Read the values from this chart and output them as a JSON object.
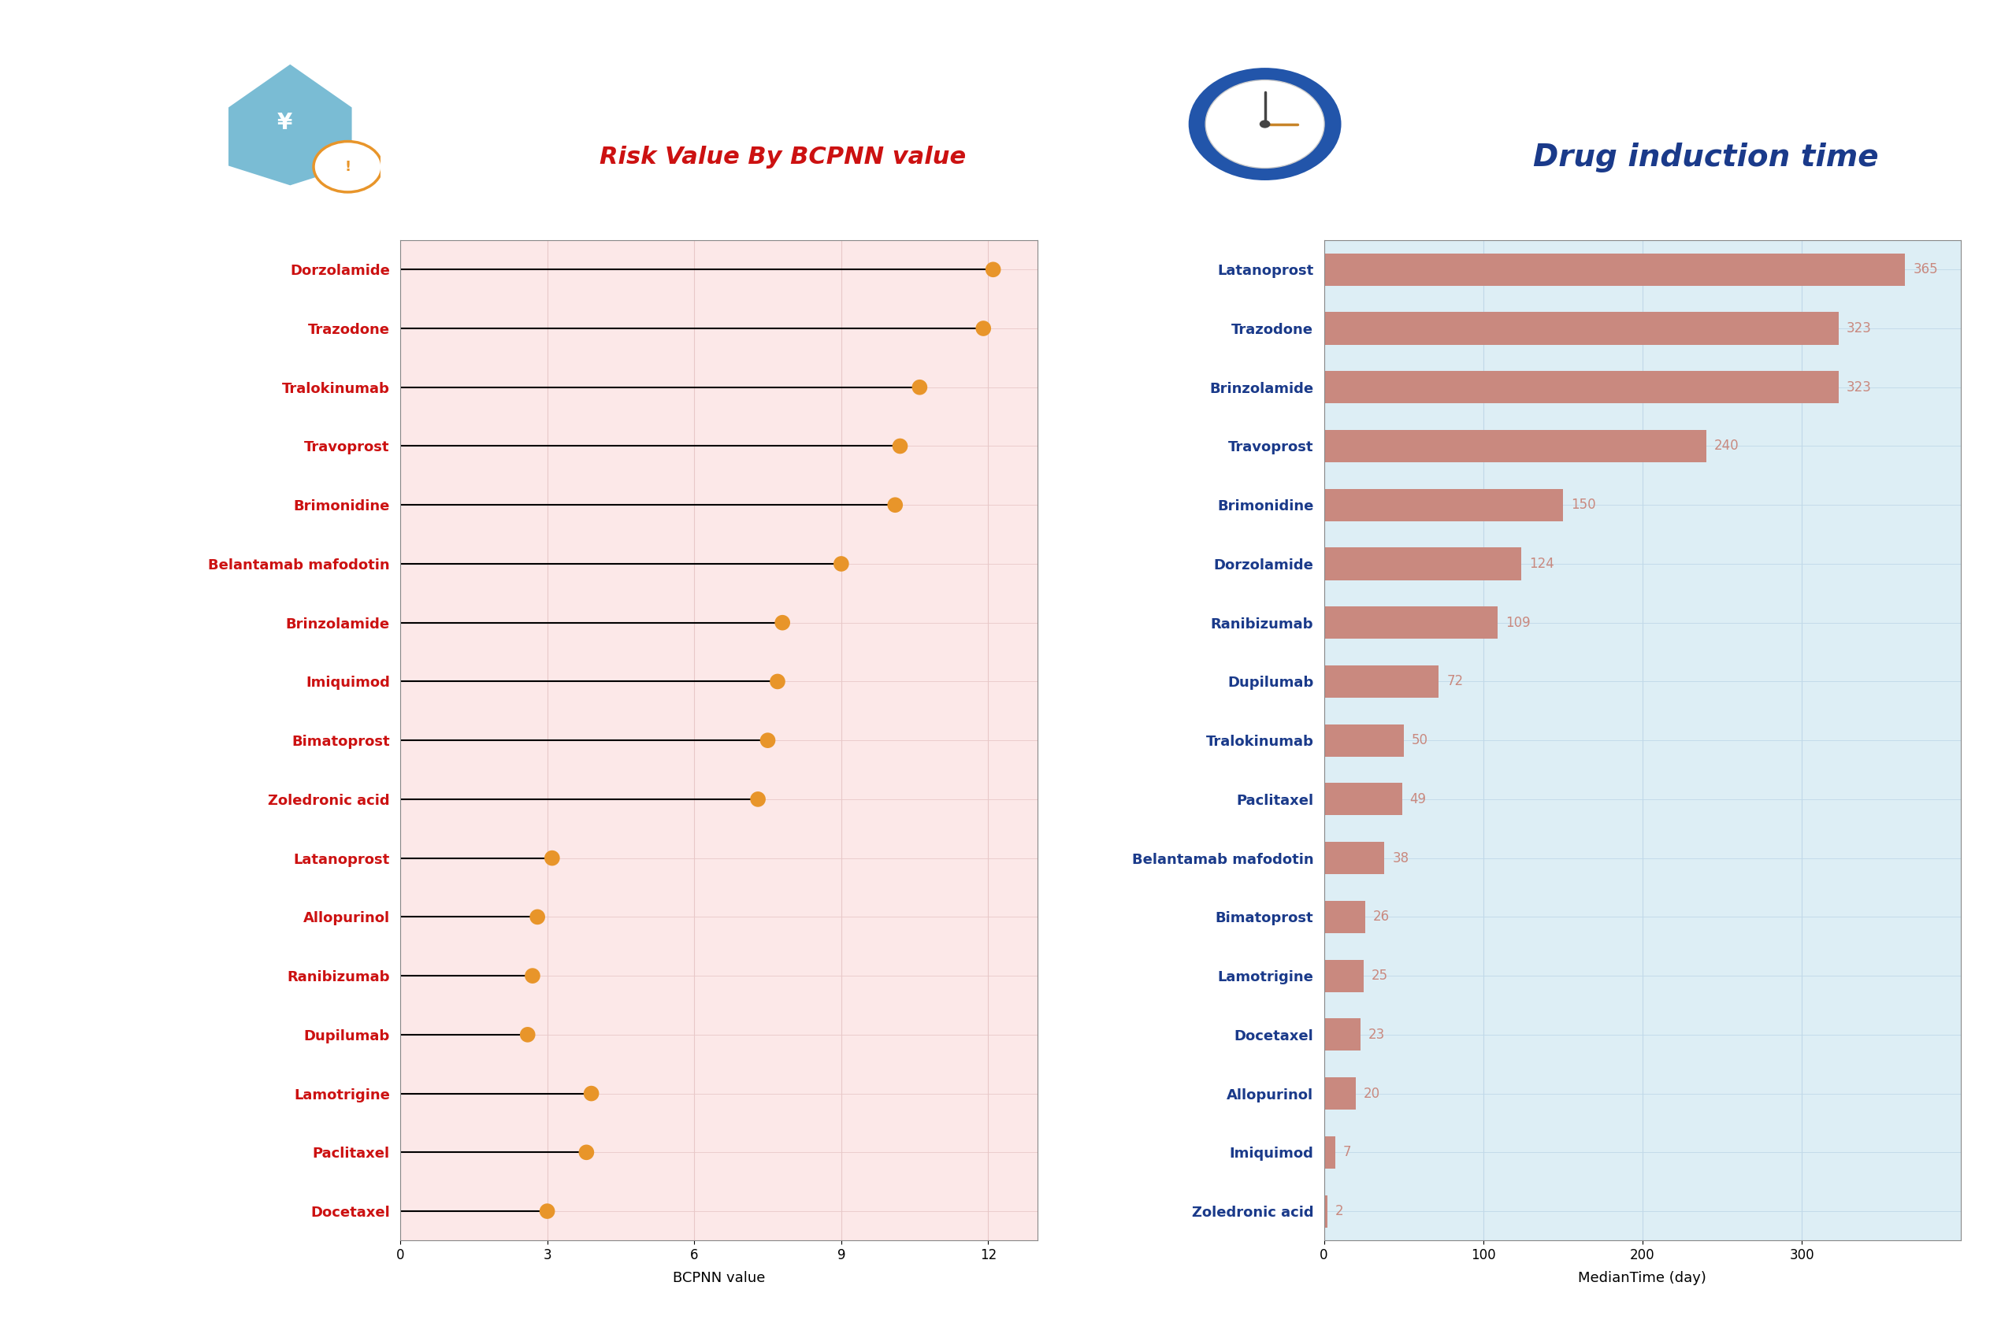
{
  "left_drugs": [
    "Dorzolamide",
    "Trazodone",
    "Tralokinumab",
    "Travoprost",
    "Brimonidine",
    "Belantamab mafodotin",
    "Brinzolamide",
    "Imiquimod",
    "Bimatoprost",
    "Zoledronic acid",
    "Latanoprost",
    "Allopurinol",
    "Ranibizumab",
    "Dupilumab",
    "Lamotrigine",
    "Paclitaxel",
    "Docetaxel"
  ],
  "left_values": [
    12.1,
    11.9,
    10.6,
    10.2,
    10.1,
    9.0,
    7.8,
    7.7,
    7.5,
    7.3,
    3.1,
    2.8,
    2.7,
    2.6,
    3.9,
    3.8,
    3.0
  ],
  "right_drugs": [
    "Latanoprost",
    "Trazodone",
    "Brinzolamide",
    "Travoprost",
    "Brimonidine",
    "Dorzolamide",
    "Ranibizumab",
    "Dupilumab",
    "Tralokinumab",
    "Paclitaxel",
    "Belantamab mafodotin",
    "Bimatoprost",
    "Lamotrigine",
    "Docetaxel",
    "Allopurinol",
    "Imiquimod",
    "Zoledronic acid"
  ],
  "right_values": [
    365,
    323,
    323,
    240,
    150,
    124,
    109,
    72,
    50,
    49,
    38,
    26,
    25,
    23,
    20,
    7,
    2
  ],
  "left_title": "Risk Value By BCPNN value",
  "right_title": "Drug induction time",
  "left_xlabel": "BCPNN value",
  "right_xlabel": "MedianTime (day)",
  "left_bg": "#fce8e8",
  "right_bg": "#ddeef5",
  "dot_color": "#e8952a",
  "bar_color": "#c9897f",
  "bar_value_color": "#c9897f",
  "title_color_left": "#cc1111",
  "title_color_right": "#1a3a8a",
  "label_color_left": "#cc1111",
  "label_color_right": "#1a3a8a",
  "left_xlim": [
    0,
    13
  ],
  "right_xlim": [
    0,
    400
  ],
  "left_xticks": [
    0,
    3,
    6,
    9,
    12
  ],
  "right_xticks": [
    0,
    100,
    200,
    300
  ],
  "grid_color_left": "#e8c8c8",
  "grid_color_right": "#c0d8e8",
  "title_bg_left": "#fce8e8",
  "title_bg_right": "#ddeef5"
}
